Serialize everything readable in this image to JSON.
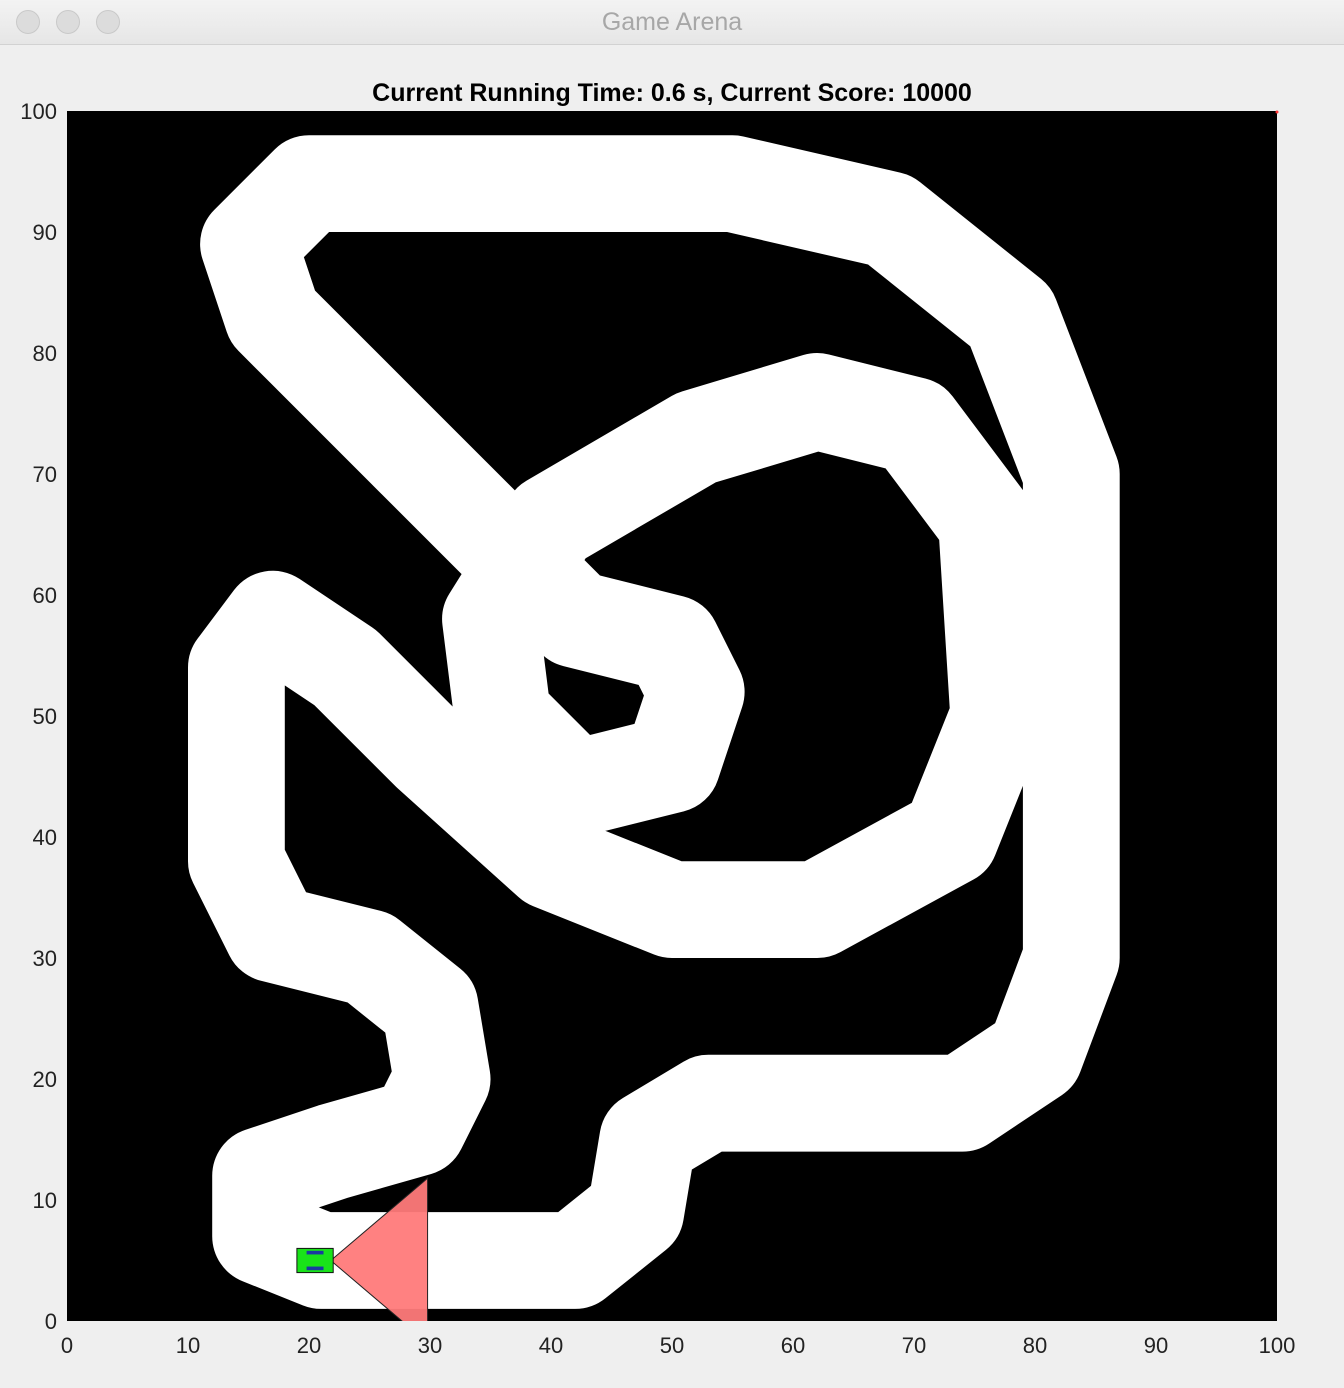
{
  "window": {
    "title": "Game Arena",
    "buttons": [
      "close",
      "minimize",
      "zoom"
    ]
  },
  "hud": {
    "status_text": "Current Running Time: 0.6 s, Current Score: 10000",
    "running_time_s": 0.6,
    "score": 10000
  },
  "axes": {
    "x_ticks": [
      "0",
      "10",
      "20",
      "30",
      "40",
      "50",
      "60",
      "70",
      "80",
      "90",
      "100"
    ],
    "y_ticks": [
      "0",
      "10",
      "20",
      "30",
      "40",
      "50",
      "60",
      "70",
      "80",
      "90",
      "100"
    ],
    "xlim": [
      0,
      100
    ],
    "ylim": [
      0,
      100
    ]
  },
  "arena": {
    "background_color": "#000000",
    "track_color": "#ffffff",
    "track_centerline": [
      [
        21,
        5
      ],
      [
        42,
        5
      ],
      [
        47,
        9
      ],
      [
        48,
        15
      ],
      [
        53,
        18
      ],
      [
        74,
        18
      ],
      [
        80,
        22
      ],
      [
        83,
        30
      ],
      [
        83,
        70
      ],
      [
        78,
        83
      ],
      [
        68,
        91
      ],
      [
        55,
        94
      ],
      [
        20,
        94
      ],
      [
        15,
        89
      ],
      [
        17,
        83
      ],
      [
        30,
        70
      ],
      [
        42,
        58
      ],
      [
        50,
        56
      ],
      [
        52,
        52
      ],
      [
        50,
        46
      ],
      [
        42,
        44
      ],
      [
        36,
        50
      ],
      [
        35,
        58
      ],
      [
        40,
        66
      ],
      [
        52,
        73
      ],
      [
        62,
        76
      ],
      [
        70,
        74
      ],
      [
        76,
        66
      ],
      [
        77,
        50
      ],
      [
        73,
        40
      ],
      [
        62,
        34
      ],
      [
        50,
        34
      ],
      [
        40,
        38
      ],
      [
        30,
        47
      ],
      [
        23,
        54
      ],
      [
        17,
        58
      ],
      [
        14,
        54
      ],
      [
        14,
        38
      ],
      [
        17,
        32
      ],
      [
        25,
        30
      ],
      [
        30,
        26
      ],
      [
        31,
        20
      ],
      [
        29,
        16
      ],
      [
        22,
        14
      ],
      [
        16,
        12
      ],
      [
        16,
        7
      ],
      [
        21,
        5
      ]
    ],
    "track_width": 8
  },
  "vehicle": {
    "x": 20.5,
    "y": 5.0,
    "heading_deg": 0,
    "body_color": "#19e319",
    "sensor_cone_color": "#ff7a7a",
    "sensor_range": 8
  }
}
